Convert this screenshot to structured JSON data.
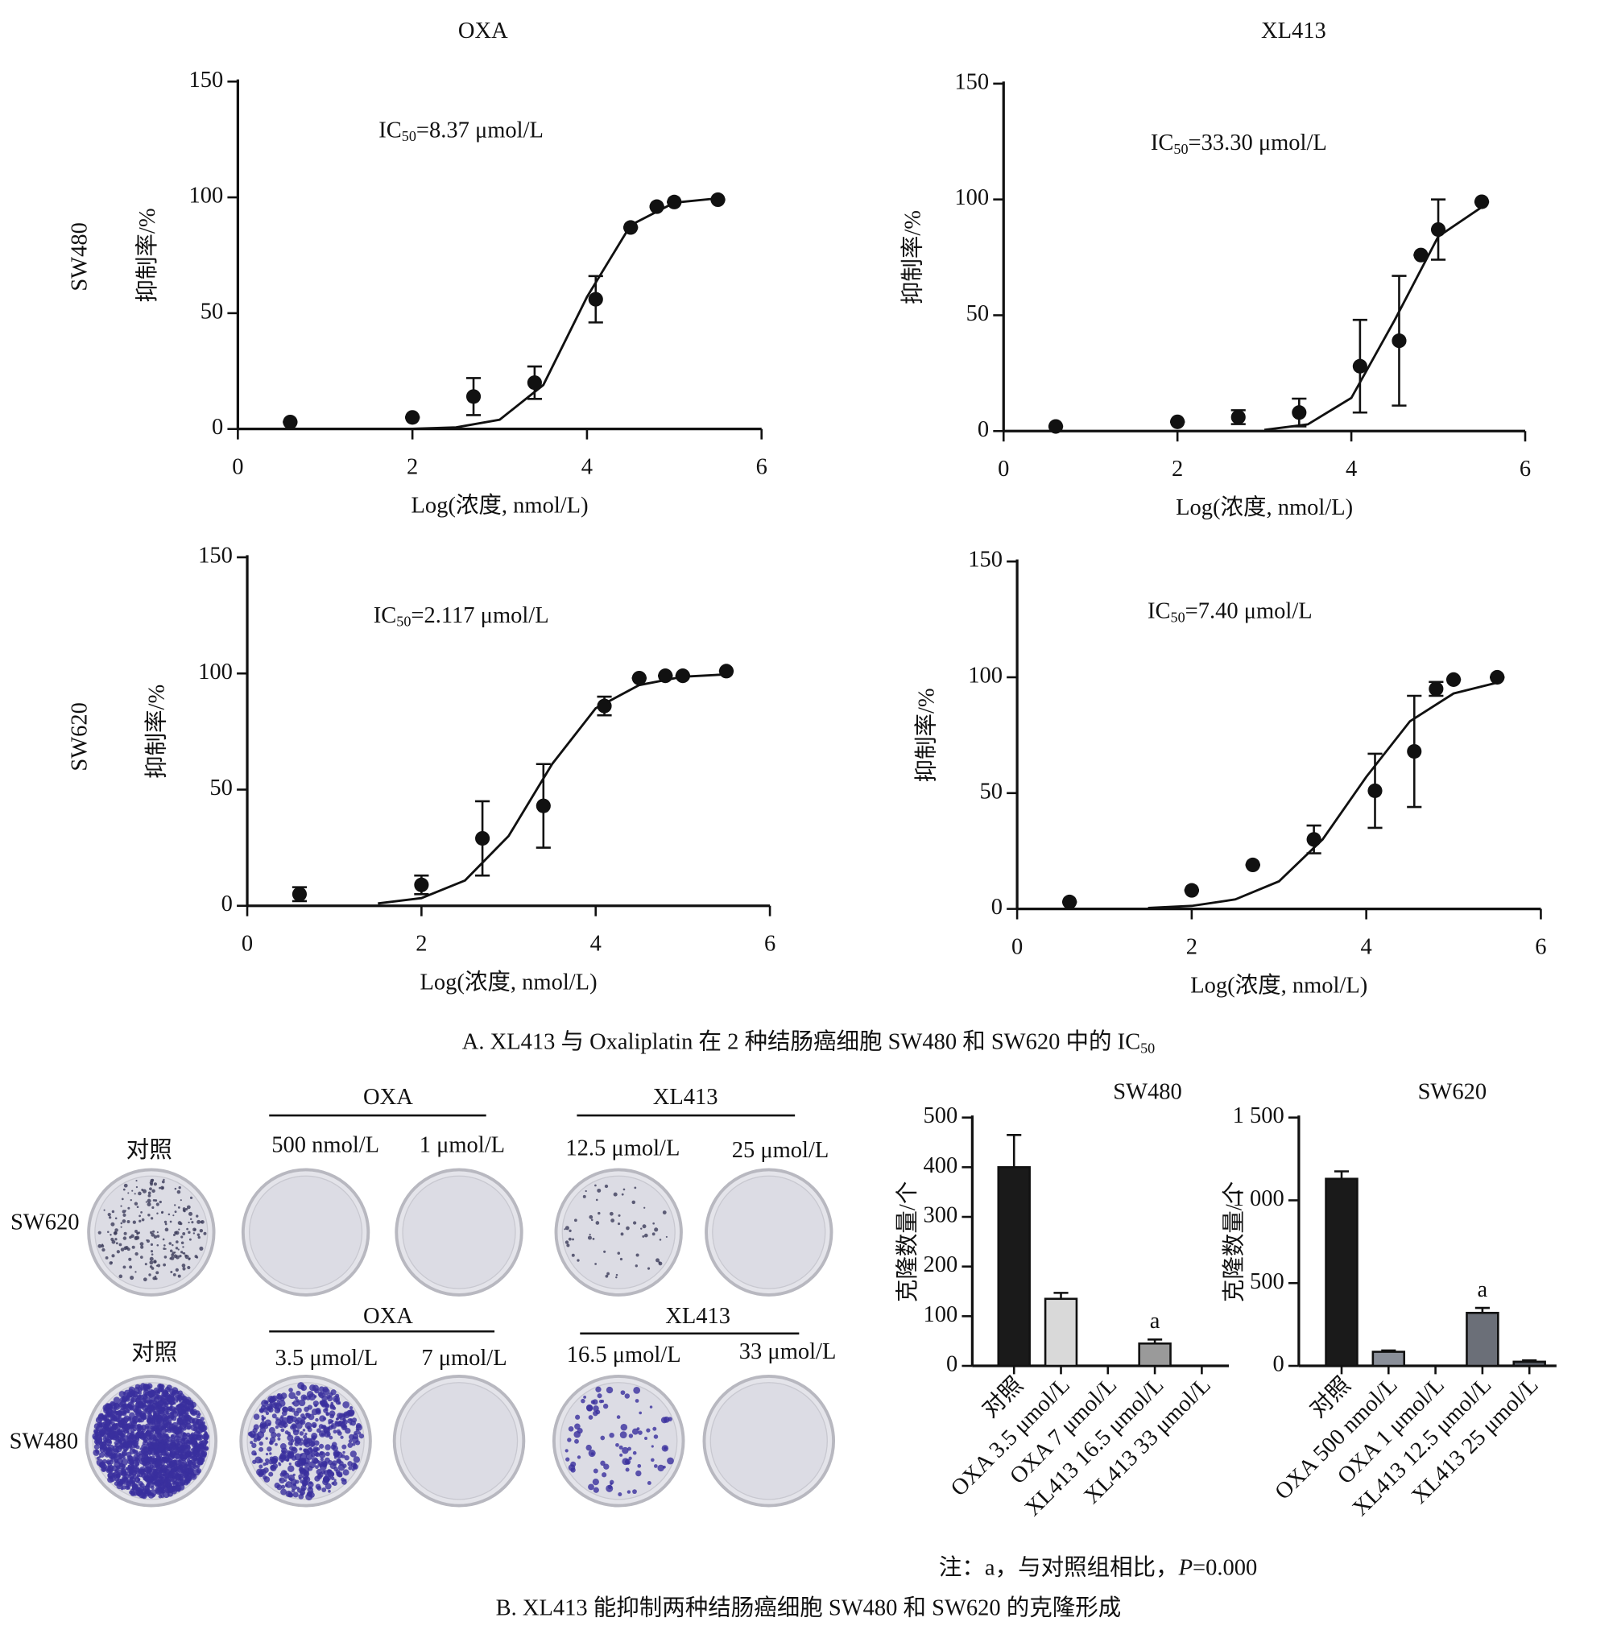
{
  "chart_data": [
    {
      "type": "scatter",
      "title": "OXA",
      "row_label": "SW480",
      "annotation": {
        "prefix": "IC",
        "sub": "50",
        "rest": "=8.37 μmol/L"
      },
      "xlabel": "Log(浓度, nmol/L)",
      "ylabel": "抑制率/%",
      "xlim": [
        0,
        6
      ],
      "xticks": [
        0,
        2,
        4,
        6
      ],
      "ylim": [
        0,
        150
      ],
      "yticks": [
        0,
        50,
        100,
        150
      ],
      "color": "#111111",
      "x": [
        0.6,
        2,
        2.7,
        3.4,
        4.1,
        4.5,
        4.8,
        5,
        5.5
      ],
      "series": [
        {
          "values": [
            3,
            5,
            14,
            20,
            56,
            87,
            96,
            98,
            99
          ],
          "errors": [
            0,
            0,
            8,
            7,
            10,
            0,
            0,
            0,
            0
          ]
        }
      ],
      "curve": {
        "x": [
          2,
          2.5,
          3,
          3.5,
          4,
          4.5,
          5,
          5.5
        ],
        "y": [
          0.1,
          0.7,
          4,
          19,
          57,
          88,
          97.7,
          99.6
        ]
      }
    },
    {
      "type": "scatter",
      "title": "XL413",
      "annotation": {
        "prefix": "IC",
        "sub": "50",
        "rest": "=33.30 μmol/L"
      },
      "xlabel": "Log(浓度, nmol/L)",
      "ylabel": "抑制率/%",
      "xlim": [
        0,
        6
      ],
      "xticks": [
        0,
        2,
        4,
        6
      ],
      "ylim": [
        0,
        150
      ],
      "yticks": [
        0,
        50,
        100,
        150
      ],
      "color": "#111111",
      "x": [
        0.6,
        2,
        2.7,
        3.4,
        4.1,
        4.55,
        4.8,
        5,
        5.5
      ],
      "series": [
        {
          "values": [
            2,
            4,
            6,
            8,
            28,
            39,
            76,
            87,
            99
          ],
          "errors": [
            0,
            0,
            3,
            6,
            20,
            28,
            0,
            13,
            0
          ]
        }
      ],
      "curve": {
        "x": [
          3,
          3.5,
          4,
          4.5,
          5,
          5.5
        ],
        "y": [
          0.5,
          2.9,
          14.3,
          48,
          84,
          96.7
        ]
      }
    },
    {
      "type": "scatter",
      "row_label": "SW620",
      "annotation": {
        "prefix": "IC",
        "sub": "50",
        "rest": "=2.117 μmol/L"
      },
      "xlabel": "Log(浓度, nmol/L)",
      "ylabel": "抑制率/%",
      "xlim": [
        0,
        6
      ],
      "xticks": [
        0,
        2,
        4,
        6
      ],
      "ylim": [
        0,
        150
      ],
      "yticks": [
        0,
        50,
        100,
        150
      ],
      "color": "#111111",
      "x": [
        0.6,
        2,
        2.7,
        3.4,
        4.1,
        4.5,
        4.8,
        5,
        5.5
      ],
      "series": [
        {
          "values": [
            5,
            9,
            29,
            43,
            86,
            98,
            99,
            99,
            101
          ],
          "errors": [
            3,
            4,
            16,
            18,
            4,
            0,
            0,
            0,
            0
          ]
        }
      ],
      "curve": {
        "x": [
          1.5,
          2,
          2.5,
          3,
          3.5,
          4,
          4.5,
          5,
          5.5
        ],
        "y": [
          1,
          3.3,
          10.9,
          30,
          61,
          85,
          95,
          98.6,
          99.6
        ]
      }
    },
    {
      "type": "scatter",
      "annotation": {
        "prefix": "IC",
        "sub": "50",
        "rest": "=7.40 μmol/L"
      },
      "xlabel": "Log(浓度, nmol/L)",
      "ylabel": "抑制率/%",
      "xlim": [
        0,
        6
      ],
      "xticks": [
        0,
        2,
        4,
        6
      ],
      "ylim": [
        0,
        150
      ],
      "yticks": [
        0,
        50,
        100,
        150
      ],
      "color": "#111111",
      "x": [
        0.6,
        2,
        2.7,
        3.4,
        4.1,
        4.55,
        4.8,
        5,
        5.5
      ],
      "series": [
        {
          "values": [
            3,
            8,
            19,
            30,
            51,
            68,
            95,
            99,
            100
          ],
          "errors": [
            0,
            0,
            0,
            6,
            16,
            24,
            3,
            0,
            0
          ]
        }
      ],
      "curve": {
        "x": [
          1.5,
          2,
          2.5,
          3,
          3.5,
          4,
          4.5,
          5,
          5.5
        ],
        "y": [
          0.4,
          1.3,
          4.1,
          11.9,
          30,
          57,
          81,
          93,
          97.7
        ]
      }
    },
    {
      "type": "bar",
      "title": "SW480",
      "ylabel": "克隆数量/个",
      "ylim": [
        0,
        500
      ],
      "yticks": [
        0,
        100,
        200,
        300,
        400,
        500
      ],
      "categories": [
        "对照",
        "OXA 3.5 μmol/L",
        "OXA 7 μmol/L",
        "XL413 16.5 μmol/L",
        "XL413 33 μmol/L"
      ],
      "values": [
        400,
        135,
        0,
        45,
        0
      ],
      "errors": [
        65,
        12,
        0,
        8,
        0
      ],
      "colors": [
        "#1a1a1a",
        "#d9d9d9",
        "#d9d9d9",
        "#9a9a9a",
        "#9a9a9a"
      ],
      "annotations": [
        {
          "category": "XL413 16.5 μmol/L",
          "text": "a"
        }
      ]
    },
    {
      "type": "bar",
      "title": "SW620",
      "ylabel": "克隆数量/个",
      "ylim": [
        0,
        1500
      ],
      "yticks": [
        0,
        500,
        {
          "value": 1000,
          "label": "1 000"
        },
        {
          "value": 1500,
          "label": "1 500"
        }
      ],
      "categories": [
        "对照",
        "OXA 500 nmol/L",
        "OXA 1 μmol/L",
        "XL413 12.5 μmol/L",
        "XL413 25 μmol/L"
      ],
      "values": [
        1130,
        85,
        0,
        320,
        25
      ],
      "errors": [
        45,
        8,
        0,
        30,
        8
      ],
      "colors": [
        "#1a1a1a",
        "#8a8f99",
        "#8a8f99",
        "#6b6f78",
        "#555a63"
      ],
      "annotations": [
        {
          "category": "XL413 12.5 μmol/L",
          "text": "a"
        }
      ]
    }
  ],
  "caption_a": {
    "text": "A. XL413 与 Oxaliplatin 在 2 种结肠癌细胞 SW480 和 SW620 中的 IC",
    "sub": "50"
  },
  "colony_assay": {
    "rows": [
      {
        "cell": "SW620",
        "control": "对照",
        "groups": [
          {
            "name": "OXA",
            "doses": [
              "500 nmol/L",
              "1 μmol/L"
            ]
          },
          {
            "name": "XL413",
            "doses": [
              "12.5 μmol/L",
              "25 μmol/L"
            ]
          }
        ]
      },
      {
        "cell": "SW480",
        "control": "对照",
        "groups": [
          {
            "name": "OXA",
            "doses": [
              "3.5 μmol/L",
              "7 μmol/L"
            ]
          },
          {
            "name": "XL413",
            "doses": [
              "16.5 μmol/L",
              "33 μmol/L"
            ]
          }
        ]
      }
    ]
  },
  "note": {
    "prefix": "注：a，与对照组相比，",
    "italic": "P",
    "rest": "=0.000"
  },
  "caption_b": "B. XL413 能抑制两种结肠癌细胞 SW480 和 SW620 的克隆形成"
}
